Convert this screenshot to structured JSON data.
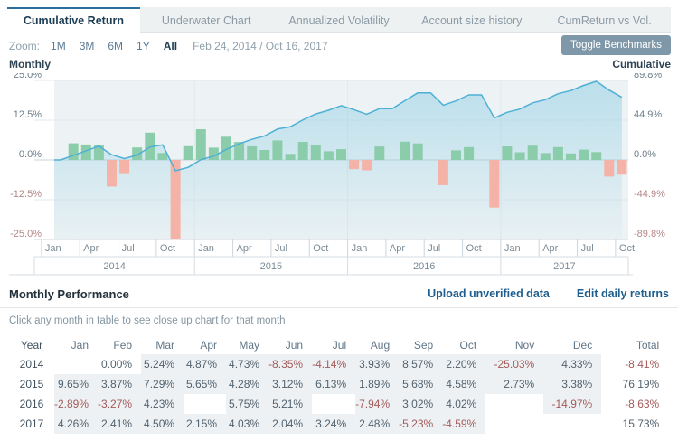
{
  "tabs": [
    {
      "label": "Cumulative Return",
      "active": true
    },
    {
      "label": "Underwater Chart",
      "active": false
    },
    {
      "label": "Annualized Volatility",
      "active": false
    },
    {
      "label": "Account size history",
      "active": false
    },
    {
      "label": "CumReturn vs Vol.",
      "active": false
    }
  ],
  "toolbar": {
    "zoom_label": "Zoom:",
    "ranges": [
      "1M",
      "3M",
      "6M",
      "1Y",
      "All"
    ],
    "active_range": "All",
    "date_range": "Feb 24, 2014 / Oct 16, 2017",
    "toggle_button": "Toggle Benchmarks"
  },
  "chart_data": {
    "type": "combo bar+area-line: monthly return bars on left axis, cumulative return line on right axis",
    "x": [
      "2014-02",
      "2014-03",
      "2014-04",
      "2014-05",
      "2014-06",
      "2014-07",
      "2014-08",
      "2014-09",
      "2014-10",
      "2014-11",
      "2014-12",
      "2015-01",
      "2015-02",
      "2015-03",
      "2015-04",
      "2015-05",
      "2015-06",
      "2015-07",
      "2015-08",
      "2015-09",
      "2015-10",
      "2015-11",
      "2015-12",
      "2016-01",
      "2016-02",
      "2016-03",
      "2016-04",
      "2016-05",
      "2016-06",
      "2016-07",
      "2016-08",
      "2016-09",
      "2016-10",
      "2016-11",
      "2016-12",
      "2017-01",
      "2017-02",
      "2017-03",
      "2017-04",
      "2017-05",
      "2017-06",
      "2017-07",
      "2017-08",
      "2017-09",
      "2017-10"
    ],
    "series": [
      {
        "name": "Monthly return %",
        "type": "bar",
        "axis": "left",
        "values": [
          0.0,
          5.24,
          4.87,
          4.73,
          -8.35,
          -4.14,
          3.93,
          8.57,
          2.2,
          -25.03,
          4.33,
          9.65,
          3.87,
          7.29,
          5.65,
          4.28,
          3.12,
          6.13,
          1.89,
          5.68,
          4.58,
          2.73,
          3.38,
          -2.89,
          -3.27,
          4.23,
          null,
          5.75,
          5.21,
          null,
          -7.94,
          3.02,
          4.02,
          null,
          -14.97,
          4.26,
          2.41,
          4.5,
          2.15,
          4.03,
          2.04,
          3.24,
          2.48,
          -5.23,
          -4.59
        ]
      },
      {
        "name": "Cumulative return %",
        "type": "area-line",
        "axis": "right",
        "values": [
          0,
          5.24,
          10.37,
          15.59,
          5.93,
          1.55,
          5.54,
          14.58,
          17.1,
          -12.21,
          -8.41,
          0.43,
          4.31,
          11.92,
          18.24,
          23.3,
          27.15,
          34.94,
          37.49,
          45.3,
          51.96,
          56.11,
          61.38,
          56.72,
          51.59,
          58.0,
          58.0,
          67.09,
          75.79,
          75.79,
          61.84,
          66.73,
          73.43,
          73.43,
          47.47,
          53.75,
          57.46,
          64.54,
          68.08,
          74.85,
          78.41,
          84.19,
          88.76,
          78.89,
          70.68
        ]
      }
    ],
    "left_axis": {
      "title": "Monthly",
      "range": [
        -25,
        25
      ],
      "ticks": [
        "25.0%",
        "12.5%",
        "0.0%",
        "-12.5%",
        "-25.0%"
      ]
    },
    "right_axis": {
      "title": "Cumulative",
      "range": [
        -89.8,
        89.8
      ],
      "ticks": [
        "89.8%",
        "44.9%",
        "0.0%",
        "-44.9%",
        "-89.8%"
      ]
    },
    "x_quarter_labels": [
      {
        "label": "Jan",
        "i": -1
      },
      {
        "label": "Apr",
        "i": 2
      },
      {
        "label": "Jul",
        "i": 5
      },
      {
        "label": "Oct",
        "i": 8
      },
      {
        "label": "Jan",
        "i": 11
      },
      {
        "label": "Apr",
        "i": 14
      },
      {
        "label": "Jul",
        "i": 17
      },
      {
        "label": "Oct",
        "i": 20
      },
      {
        "label": "Jan",
        "i": 23
      },
      {
        "label": "Apr",
        "i": 26
      },
      {
        "label": "Jul",
        "i": 29
      },
      {
        "label": "Oct",
        "i": 32
      },
      {
        "label": "Jan",
        "i": 35
      },
      {
        "label": "Apr",
        "i": 38
      },
      {
        "label": "Jul",
        "i": 41
      },
      {
        "label": "Oct",
        "i": 44
      }
    ],
    "year_bands": [
      {
        "label": "2014",
        "end_index": 10
      },
      {
        "label": "2015",
        "end_index": 22
      },
      {
        "label": "2016",
        "end_index": 34
      },
      {
        "label": "2017",
        "end_index": 44
      }
    ],
    "grid": true,
    "legend": false,
    "colors": {
      "bar_positive": "#8bcdab",
      "bar_negative": "#f5b2a7",
      "line": "#4fb0d5",
      "plot_bg": "#edf2f4",
      "tick_positive": "#6b7d89",
      "tick_negative": "#b58787"
    }
  },
  "performance": {
    "title": "Monthly Performance",
    "links": [
      "Upload unverified data",
      "Edit daily returns"
    ],
    "caption": "Click any month in table to see close up chart for that month",
    "columns": [
      "Year",
      "Jan",
      "Feb",
      "Mar",
      "Apr",
      "May",
      "Jun",
      "Jul",
      "Aug",
      "Sep",
      "Oct",
      "Nov",
      "Dec",
      "Total"
    ],
    "rows": [
      {
        "year": "2014",
        "cells": [
          "",
          "0.00%",
          "5.24%",
          "4.87%",
          "4.73%",
          "-8.35%",
          "-4.14%",
          "3.93%",
          "8.57%",
          "2.20%",
          "-25.03%",
          "4.33%"
        ],
        "shaded": [
          false,
          false,
          true,
          true,
          true,
          true,
          true,
          true,
          true,
          true,
          true,
          true
        ],
        "total": "-8.41%"
      },
      {
        "year": "2015",
        "cells": [
          "9.65%",
          "3.87%",
          "7.29%",
          "5.65%",
          "4.28%",
          "3.12%",
          "6.13%",
          "1.89%",
          "5.68%",
          "4.58%",
          "2.73%",
          "3.38%"
        ],
        "shaded": [
          true,
          true,
          true,
          true,
          true,
          true,
          true,
          true,
          true,
          true,
          true,
          true
        ],
        "total": "76.19%"
      },
      {
        "year": "2016",
        "cells": [
          "-2.89%",
          "-3.27%",
          "4.23%",
          "",
          "5.75%",
          "5.21%",
          "",
          "-7.94%",
          "3.02%",
          "4.02%",
          "",
          "-14.97%"
        ],
        "shaded": [
          true,
          true,
          true,
          false,
          true,
          true,
          false,
          true,
          true,
          true,
          false,
          true
        ],
        "total": "-8.63%"
      },
      {
        "year": "2017",
        "cells": [
          "4.26%",
          "2.41%",
          "4.50%",
          "2.15%",
          "4.03%",
          "2.04%",
          "3.24%",
          "2.48%",
          "-5.23%",
          "-4.59%",
          "",
          ""
        ],
        "shaded": [
          true,
          true,
          true,
          true,
          true,
          true,
          true,
          true,
          true,
          true,
          false,
          false
        ],
        "total": "15.73%"
      }
    ]
  }
}
